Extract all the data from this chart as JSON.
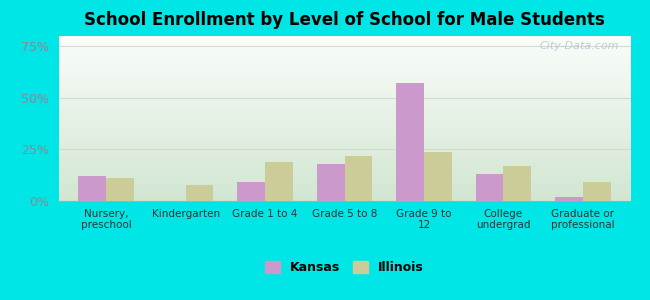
{
  "title": "School Enrollment by Level of School for Male Students",
  "categories": [
    "Nursery,\npreschool",
    "Kindergarten",
    "Grade 1 to 4",
    "Grade 5 to 8",
    "Grade 9 to\n12",
    "College\nundergrad",
    "Graduate or\nprofessional"
  ],
  "kansas_values": [
    12,
    0,
    9,
    18,
    57,
    13,
    2
  ],
  "illinois_values": [
    11,
    8,
    19,
    22,
    24,
    17,
    9
  ],
  "kansas_color": "#cc99cc",
  "illinois_color": "#cccc99",
  "background_color": "#00e5e5",
  "ylabel_ticks": [
    "0%",
    "25%",
    "50%",
    "75%"
  ],
  "yticks": [
    0,
    25,
    50,
    75
  ],
  "ylim": [
    0,
    80
  ],
  "bar_width": 0.35,
  "legend_kansas": "Kansas",
  "legend_illinois": "Illinois",
  "watermark": "City-Data.com",
  "tick_label_color": "#888899",
  "title_fontsize": 12
}
